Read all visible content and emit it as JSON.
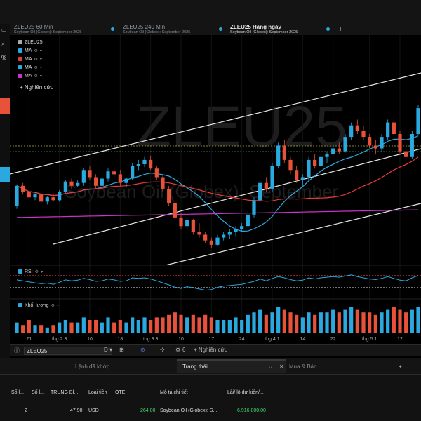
{
  "tabs": [
    {
      "title": "ZLEU25 60 Min",
      "subtitle": "Soybean Oil (Globex): September 2025",
      "active": false
    },
    {
      "title": "ZLEU25 240 Min",
      "subtitle": "Soybean Oil (Globex): September 2025",
      "active": false
    },
    {
      "title": "ZLEU25 Hàng ngày",
      "subtitle": "Soybean Oil (Globex): September 2025",
      "active": true
    }
  ],
  "tab_add": "+",
  "left_toolbar": {
    "top_icon": "▭",
    "search_icon": "⌕",
    "percent": "%"
  },
  "legend": {
    "symbol": "ZLEU25",
    "indicators": [
      {
        "label": "MA",
        "color": "#2aa8e0"
      },
      {
        "label": "MA",
        "color": "#e83a3a"
      },
      {
        "label": "MA",
        "color": "#2aa8e0"
      },
      {
        "label": "MA",
        "color": "#cc33cc"
      }
    ],
    "research": "+ Nghiên cứu"
  },
  "watermark": {
    "symbol": "ZLEU25",
    "name": "Soybean Oil (Globex): September"
  },
  "rsi_label": "RSI",
  "volume_label": "Khối lượng",
  "x_ticks": [
    "21",
    "thg 2 3",
    "10",
    "18",
    "thg 3 3",
    "10",
    "17",
    "24",
    "thg 4 1",
    "14",
    "22",
    "thg 5 1",
    "12"
  ],
  "colors": {
    "up": "#2aa8e0",
    "down": "#e8513a",
    "ma_fast": "#2aa8e0",
    "ma_slow": "#e83a3a",
    "ma_long": "#cc33cc",
    "channel": "#e6e6e6"
  },
  "chart_toolbar": {
    "symbol": "ZLEU25",
    "period": "D",
    "count": "6",
    "research": "+ Nghiên cứu"
  },
  "panel": {
    "tabs": [
      "Lệnh đã khớp",
      "Trạng thái",
      "Mua & Bán"
    ],
    "add": "+",
    "columns": [
      "Số l...",
      "Số l...",
      "TRUNG BÌ...",
      "Loại tiền",
      "OTE",
      "Mô tả chi tiết",
      "Lãi/ lỗ dự kiến/..."
    ],
    "row": {
      "c1": "2",
      "c2": "",
      "avg": "47,90",
      "currency": "USD",
      "ote": "264,00",
      "desc": "Soybean Oil (Globex): S...",
      "pnl": "6.916.800,00"
    }
  },
  "chart_data": {
    "type": "candlestick",
    "candles": [
      [
        30,
        45,
        28,
        44
      ],
      [
        44,
        46,
        38,
        40
      ],
      [
        40,
        42,
        35,
        36
      ],
      [
        36,
        40,
        34,
        38
      ],
      [
        38,
        39,
        32,
        33
      ],
      [
        33,
        37,
        31,
        36
      ],
      [
        36,
        38,
        33,
        34
      ],
      [
        34,
        41,
        33,
        40
      ],
      [
        40,
        48,
        39,
        47
      ],
      [
        47,
        49,
        42,
        44
      ],
      [
        44,
        48,
        43,
        46
      ],
      [
        46,
        56,
        44,
        55
      ],
      [
        55,
        58,
        48,
        50
      ],
      [
        50,
        52,
        42,
        44
      ],
      [
        44,
        50,
        43,
        49
      ],
      [
        49,
        56,
        47,
        54
      ],
      [
        54,
        57,
        49,
        52
      ],
      [
        52,
        55,
        44,
        46
      ],
      [
        46,
        50,
        43,
        49
      ],
      [
        49,
        60,
        48,
        58
      ],
      [
        58,
        62,
        55,
        59
      ],
      [
        59,
        64,
        57,
        62
      ],
      [
        62,
        65,
        55,
        56
      ],
      [
        56,
        58,
        48,
        50
      ],
      [
        50,
        52,
        40,
        42
      ],
      [
        42,
        44,
        30,
        32
      ],
      [
        32,
        34,
        20,
        22
      ],
      [
        22,
        25,
        14,
        16
      ],
      [
        16,
        22,
        13,
        20
      ],
      [
        20,
        21,
        10,
        12
      ],
      [
        12,
        18,
        8,
        10
      ],
      [
        10,
        12,
        4,
        6
      ],
      [
        6,
        8,
        1,
        3
      ],
      [
        3,
        10,
        2,
        8
      ],
      [
        8,
        12,
        6,
        10
      ],
      [
        10,
        14,
        7,
        12
      ],
      [
        12,
        16,
        9,
        14
      ],
      [
        14,
        18,
        12,
        16
      ],
      [
        16,
        26,
        15,
        24
      ],
      [
        24,
        36,
        22,
        34
      ],
      [
        34,
        48,
        32,
        46
      ],
      [
        46,
        50,
        40,
        42
      ],
      [
        42,
        60,
        40,
        58
      ],
      [
        58,
        74,
        56,
        72
      ],
      [
        72,
        76,
        60,
        62
      ],
      [
        62,
        64,
        52,
        55
      ],
      [
        55,
        58,
        46,
        48
      ],
      [
        48,
        52,
        44,
        50
      ],
      [
        50,
        64,
        48,
        62
      ],
      [
        62,
        66,
        56,
        58
      ],
      [
        58,
        66,
        57,
        64
      ],
      [
        64,
        68,
        60,
        66
      ],
      [
        66,
        72,
        64,
        70
      ],
      [
        70,
        74,
        66,
        68
      ],
      [
        68,
        80,
        67,
        78
      ],
      [
        78,
        88,
        76,
        86
      ],
      [
        86,
        90,
        80,
        82
      ],
      [
        82,
        86,
        76,
        78
      ],
      [
        78,
        80,
        70,
        72
      ],
      [
        72,
        76,
        66,
        70
      ],
      [
        70,
        80,
        68,
        78
      ],
      [
        78,
        90,
        76,
        88
      ],
      [
        88,
        92,
        78,
        80
      ],
      [
        80,
        82,
        66,
        68
      ],
      [
        68,
        72,
        60,
        64
      ],
      [
        64,
        82,
        63,
        80
      ],
      [
        80,
        100,
        79,
        98
      ]
    ],
    "rsi": [
      55,
      52,
      48,
      45,
      42,
      44,
      40,
      47,
      55,
      52,
      54,
      60,
      56,
      50,
      52,
      58,
      55,
      50,
      52,
      62,
      60,
      62,
      58,
      52,
      45,
      38,
      30,
      26,
      32,
      28,
      24,
      20,
      22,
      30,
      34,
      36,
      38,
      40,
      45,
      50,
      58,
      52,
      60,
      66,
      62,
      56,
      52,
      54,
      62,
      58,
      62,
      64,
      66,
      64,
      68,
      72,
      66,
      62,
      58,
      56,
      60,
      66,
      60,
      54,
      52,
      62,
      70
    ],
    "volume": [
      4,
      3,
      5,
      3,
      3,
      2,
      3,
      4,
      5,
      4,
      4,
      6,
      5,
      5,
      4,
      6,
      4,
      5,
      4,
      6,
      5,
      6,
      5,
      6,
      6,
      7,
      8,
      7,
      6,
      7,
      6,
      7,
      6,
      5,
      5,
      5,
      6,
      5,
      7,
      8,
      9,
      7,
      8,
      10,
      9,
      8,
      7,
      6,
      8,
      7,
      8,
      8,
      9,
      8,
      9,
      10,
      9,
      8,
      8,
      7,
      8,
      9,
      10,
      9,
      8,
      9,
      10
    ]
  }
}
